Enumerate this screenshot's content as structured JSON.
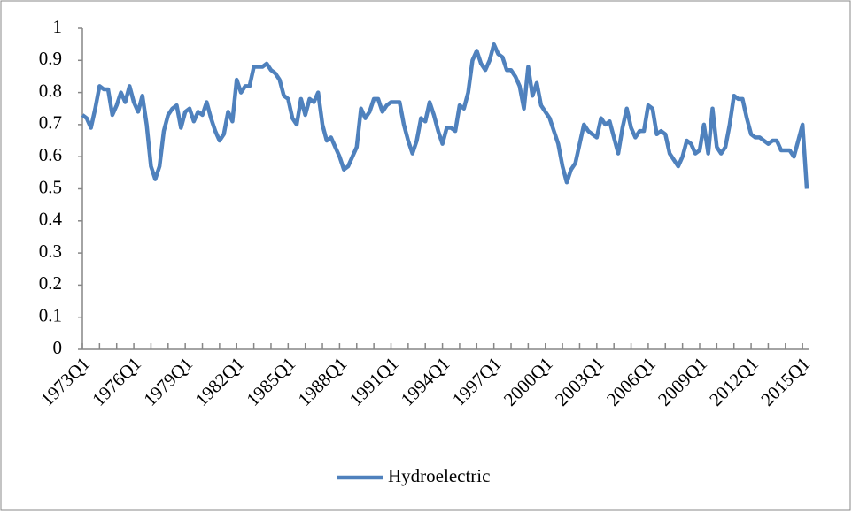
{
  "chart_data": {
    "type": "line",
    "categories": [
      "1973Q1",
      null,
      null,
      null,
      null,
      null,
      null,
      null,
      null,
      null,
      null,
      null,
      "1976Q1",
      null,
      null,
      null,
      null,
      null,
      null,
      null,
      null,
      null,
      null,
      null,
      "1979Q1",
      null,
      null,
      null,
      null,
      null,
      null,
      null,
      null,
      null,
      null,
      null,
      "1982Q1",
      null,
      null,
      null,
      null,
      null,
      null,
      null,
      null,
      null,
      null,
      null,
      "1985Q1",
      null,
      null,
      null,
      null,
      null,
      null,
      null,
      null,
      null,
      null,
      null,
      "1988Q1",
      null,
      null,
      null,
      null,
      null,
      null,
      null,
      null,
      null,
      null,
      null,
      "1991Q1",
      null,
      null,
      null,
      null,
      null,
      null,
      null,
      null,
      null,
      null,
      null,
      "1994Q1",
      null,
      null,
      null,
      null,
      null,
      null,
      null,
      null,
      null,
      null,
      null,
      "1997Q1",
      null,
      null,
      null,
      null,
      null,
      null,
      null,
      null,
      null,
      null,
      null,
      "2000Q1",
      null,
      null,
      null,
      null,
      null,
      null,
      null,
      null,
      null,
      null,
      null,
      "2003Q1",
      null,
      null,
      null,
      null,
      null,
      null,
      null,
      null,
      null,
      null,
      null,
      "2006Q1",
      null,
      null,
      null,
      null,
      null,
      null,
      null,
      null,
      null,
      null,
      null,
      "2009Q1",
      null,
      null,
      null,
      null,
      null,
      null,
      null,
      null,
      null,
      null,
      null,
      "2012Q1",
      null,
      null,
      null,
      null,
      null,
      null,
      null,
      null,
      null,
      null,
      null,
      "2015Q1",
      null
    ],
    "series": [
      {
        "name": "Hydroelectric",
        "color": "#4f81bd",
        "values": [
          0.73,
          0.72,
          0.69,
          0.75,
          0.82,
          0.81,
          0.81,
          0.73,
          0.76,
          0.8,
          0.77,
          0.82,
          0.77,
          0.74,
          0.79,
          0.7,
          0.57,
          0.53,
          0.57,
          0.68,
          0.73,
          0.75,
          0.76,
          0.69,
          0.74,
          0.75,
          0.71,
          0.74,
          0.73,
          0.77,
          0.72,
          0.68,
          0.65,
          0.67,
          0.74,
          0.71,
          0.84,
          0.8,
          0.82,
          0.82,
          0.88,
          0.88,
          0.88,
          0.89,
          0.87,
          0.86,
          0.84,
          0.79,
          0.78,
          0.72,
          0.7,
          0.78,
          0.73,
          0.78,
          0.77,
          0.8,
          0.7,
          0.65,
          0.66,
          0.63,
          0.6,
          0.56,
          0.57,
          0.6,
          0.63,
          0.75,
          0.72,
          0.74,
          0.78,
          0.78,
          0.74,
          0.76,
          0.77,
          0.77,
          0.77,
          0.7,
          0.65,
          0.61,
          0.65,
          0.72,
          0.71,
          0.77,
          0.73,
          0.68,
          0.64,
          0.69,
          0.69,
          0.68,
          0.76,
          0.75,
          0.8,
          0.9,
          0.93,
          0.89,
          0.87,
          0.9,
          0.95,
          0.92,
          0.91,
          0.87,
          0.87,
          0.85,
          0.82,
          0.75,
          0.88,
          0.79,
          0.83,
          0.76,
          0.74,
          0.72,
          0.68,
          0.64,
          0.57,
          0.52,
          0.56,
          0.58,
          0.64,
          0.7,
          0.68,
          0.67,
          0.66,
          0.72,
          0.7,
          0.71,
          0.66,
          0.61,
          0.69,
          0.75,
          0.69,
          0.66,
          0.68,
          0.68,
          0.76,
          0.75,
          0.67,
          0.68,
          0.67,
          0.61,
          0.59,
          0.57,
          0.6,
          0.65,
          0.64,
          0.61,
          0.62,
          0.7,
          0.61,
          0.75,
          0.63,
          0.61,
          0.63,
          0.7,
          0.79,
          0.78,
          0.78,
          0.72,
          0.67,
          0.66,
          0.66,
          0.65,
          0.64,
          0.65,
          0.65,
          0.62,
          0.62,
          0.62,
          0.6,
          0.65,
          0.7,
          0.5
        ]
      }
    ],
    "ylim": [
      0,
      1
    ],
    "yticks": [
      0,
      0.1,
      0.2,
      0.3,
      0.4,
      0.5,
      0.6,
      0.7,
      0.8,
      0.9,
      1
    ],
    "grid": false,
    "legend": "bottom"
  }
}
